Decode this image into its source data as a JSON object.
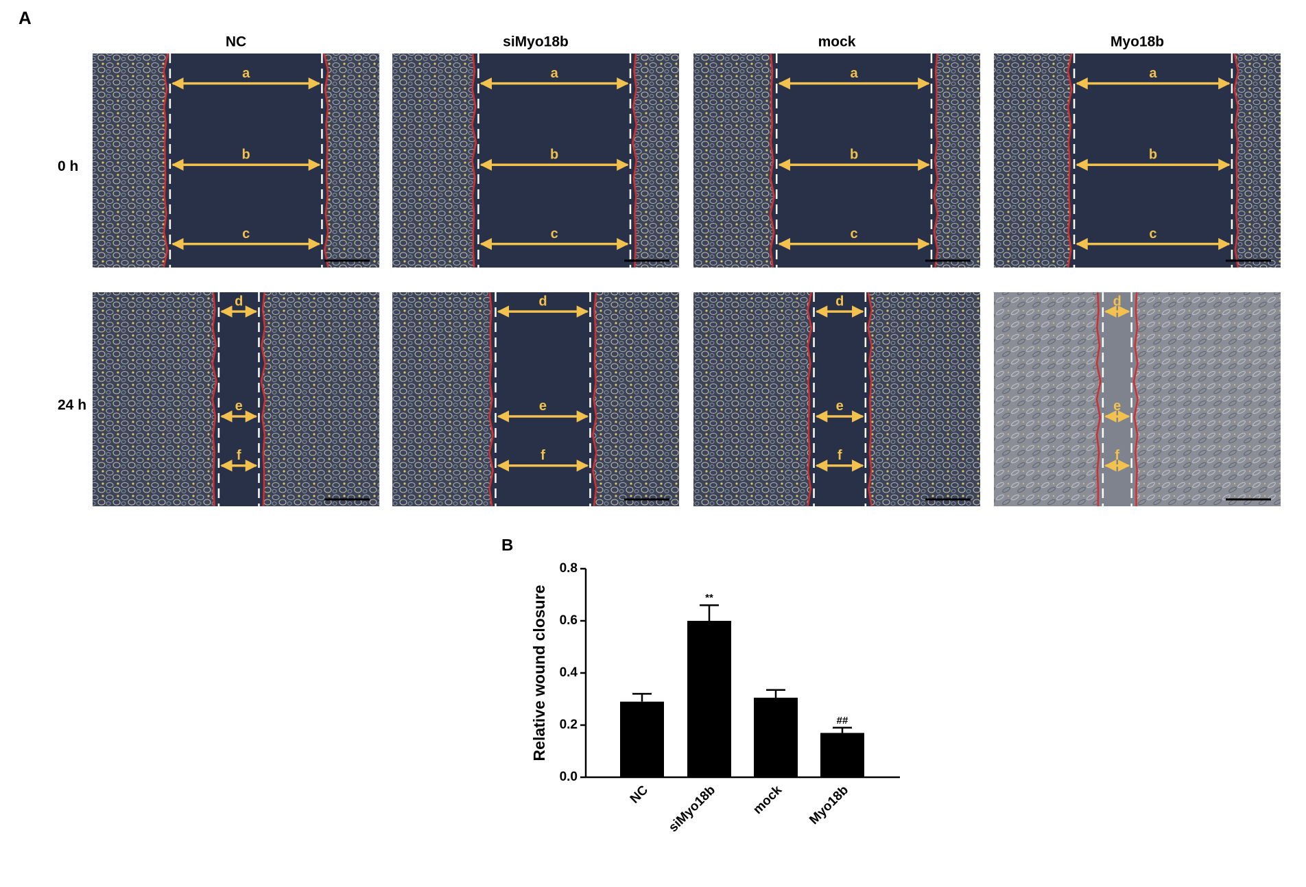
{
  "panel_a": {
    "label": "A",
    "columns": [
      "NC",
      "siMyo18b",
      "mock",
      "Myo18b"
    ],
    "rows": [
      "0 h",
      "24 h"
    ],
    "arrows": [
      [
        [
          "a",
          "b",
          "c"
        ],
        [
          "a",
          "b",
          "c"
        ],
        [
          "a",
          "b",
          "c"
        ],
        [
          "a",
          "b",
          "c"
        ]
      ],
      [
        [
          "d",
          "e",
          "f"
        ],
        [
          "d",
          "e",
          "f"
        ],
        [
          "d",
          "e",
          "f"
        ],
        [
          "d",
          "e",
          "f"
        ]
      ]
    ]
  },
  "chart_data": {
    "type": "bar",
    "panel_label": "B",
    "ylabel": "Relative wound closure",
    "categories": [
      "NC",
      "siMyo18b",
      "mock",
      "Myo18b"
    ],
    "values": [
      0.29,
      0.6,
      0.305,
      0.17
    ],
    "errors": [
      0.03,
      0.06,
      0.03,
      0.02
    ],
    "annotations": [
      null,
      "**",
      null,
      "##"
    ],
    "color": "#000000",
    "ylim": [
      0,
      0.8
    ],
    "yticks": [
      {
        "value": 0,
        "label": "0.0"
      },
      0.2,
      0.4,
      0.6,
      0.8
    ]
  }
}
